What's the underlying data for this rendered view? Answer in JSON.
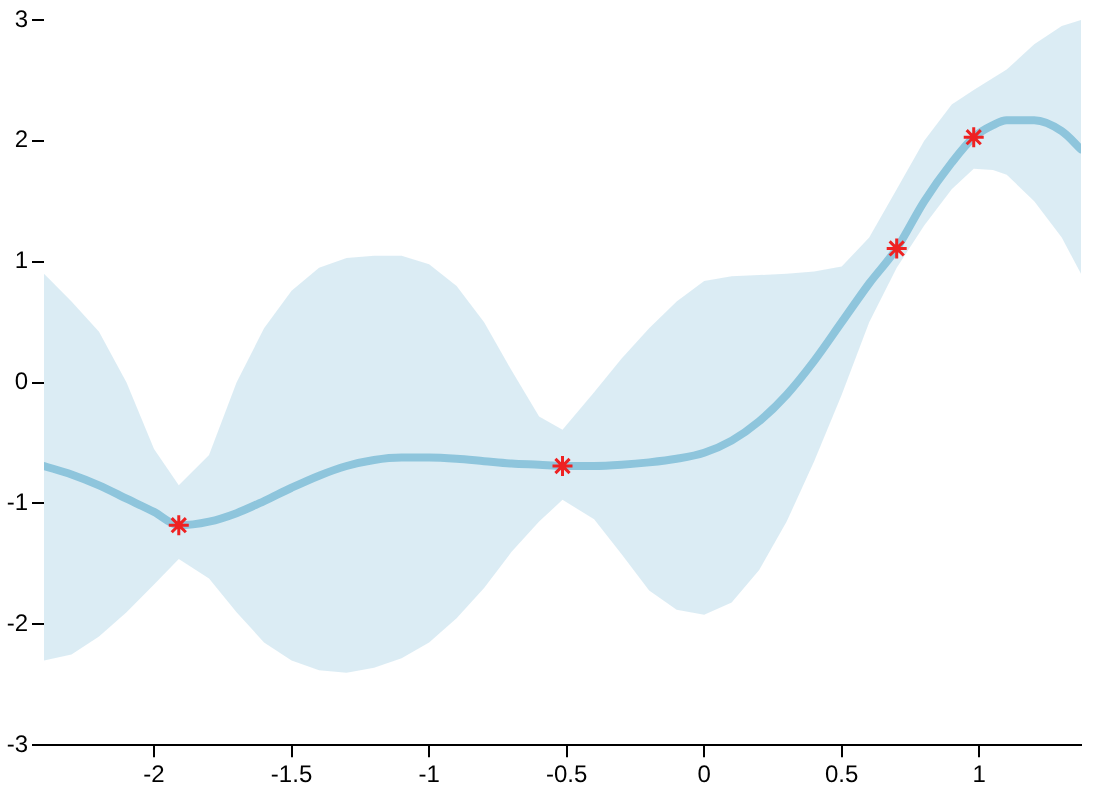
{
  "chart_data": {
    "type": "line",
    "xlim": [
      -2.4,
      1.37
    ],
    "ylim": [
      -3,
      3
    ],
    "xticks": [
      -2,
      -1.5,
      -1,
      -0.5,
      0,
      0.5,
      1
    ],
    "yticks": [
      -3,
      -2,
      -1,
      0,
      1,
      2,
      3
    ],
    "grid": false,
    "series": [
      {
        "color": "#8ec5dc",
        "marker": "none",
        "line_style": "solid",
        "x": [
          -2.4,
          -2.3,
          -2.2,
          -2.1,
          -2.0,
          -1.91,
          -1.8,
          -1.7,
          -1.6,
          -1.5,
          -1.4,
          -1.3,
          -1.2,
          -1.1,
          -1.0,
          -0.9,
          -0.8,
          -0.7,
          -0.6,
          -0.515,
          -0.4,
          -0.3,
          -0.2,
          -0.1,
          0,
          0.1,
          0.2,
          0.3,
          0.4,
          0.5,
          0.6,
          0.7,
          0.8,
          0.9,
          0.98,
          1.05,
          1.1,
          1.2,
          1.3,
          1.37
        ],
        "values": [
          -0.69,
          -0.76,
          -0.85,
          -0.96,
          -1.07,
          -1.18,
          -1.15,
          -1.08,
          -0.98,
          -0.87,
          -0.77,
          -0.69,
          -0.64,
          -0.62,
          -0.62,
          -0.63,
          -0.65,
          -0.67,
          -0.68,
          -0.69,
          -0.69,
          -0.68,
          -0.66,
          -0.63,
          -0.58,
          -0.48,
          -0.32,
          -0.1,
          0.18,
          0.5,
          0.82,
          1.11,
          1.5,
          1.82,
          2.03,
          2.13,
          2.17,
          2.17,
          2.08,
          1.93
        ],
        "upper": [
          0.9,
          0.67,
          0.42,
          0.0,
          -0.55,
          -0.85,
          -0.6,
          0.0,
          0.45,
          0.76,
          0.95,
          1.03,
          1.05,
          1.05,
          0.98,
          0.8,
          0.5,
          0.1,
          -0.28,
          -0.39,
          -0.08,
          0.2,
          0.45,
          0.67,
          0.84,
          0.88,
          0.89,
          0.9,
          0.92,
          0.96,
          1.2,
          1.6,
          2.0,
          2.3,
          2.42,
          2.52,
          2.59,
          2.8,
          2.95,
          3.0
        ],
        "lower": [
          -2.3,
          -2.25,
          -2.1,
          -1.9,
          -1.67,
          -1.46,
          -1.62,
          -1.9,
          -2.15,
          -2.3,
          -2.38,
          -2.4,
          -2.36,
          -2.28,
          -2.15,
          -1.95,
          -1.7,
          -1.4,
          -1.15,
          -0.97,
          -1.13,
          -1.42,
          -1.72,
          -1.88,
          -1.92,
          -1.82,
          -1.55,
          -1.15,
          -0.65,
          -0.1,
          0.5,
          0.95,
          1.3,
          1.6,
          1.77,
          1.76,
          1.72,
          1.5,
          1.2,
          0.9
        ]
      },
      {
        "type": "scatter",
        "color": "#ee2222",
        "marker": "cross",
        "x": [
          -1.91,
          -0.515,
          0.7,
          0.98
        ],
        "values": [
          -1.18,
          -0.69,
          1.11,
          2.03
        ]
      }
    ]
  }
}
